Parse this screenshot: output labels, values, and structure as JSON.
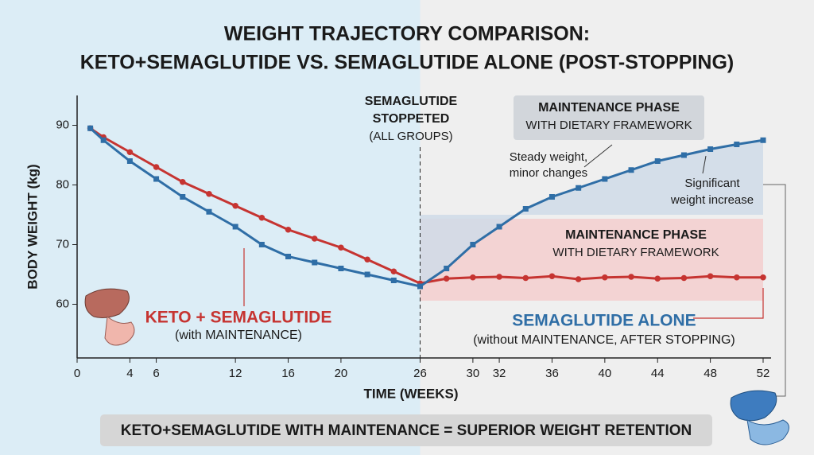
{
  "chart_data": {
    "type": "line",
    "title": [
      "WEIGHT TRAJECTORY COMPARISON:",
      "KETO+SEMAGLUTIDE VS. SEMAGLUTIDE ALONE (POST-STOPPING)"
    ],
    "y_label": "BODY WEIGHT (kg)",
    "x_label": "TIME (WEEKS)",
    "x": [
      1,
      2,
      4,
      6,
      8,
      10,
      12,
      14,
      16,
      18,
      20,
      22,
      24,
      26,
      28,
      30,
      32,
      34,
      36,
      38,
      40,
      42,
      44,
      46,
      48,
      50,
      52
    ],
    "series": [
      {
        "name": "KETO + SEMAGLUTIDE",
        "label": "(with MAINTENANCE)",
        "color": "#c63431",
        "marker": "circle",
        "values": [
          89.5,
          88,
          85.5,
          83,
          80.5,
          78.5,
          76.5,
          74.5,
          72.5,
          71,
          69.5,
          67.5,
          65.5,
          63.5,
          64.3,
          64.5,
          64.6,
          64.4,
          64.7,
          64.2,
          64.5,
          64.6,
          64.3,
          64.4,
          64.7,
          64.5,
          64.5
        ]
      },
      {
        "name": "SEMAGLUTIDE ALONE",
        "label": "(without MAINTENANCE, AFTER STOPPING)",
        "color": "#2f6ea6",
        "marker": "square",
        "values": [
          89.5,
          87.5,
          84,
          81,
          78,
          75.5,
          73,
          70,
          68,
          67,
          66,
          65,
          64,
          63,
          66,
          70,
          73,
          76,
          78,
          79.5,
          81,
          82.5,
          84,
          85,
          86,
          86.8,
          87.5
        ]
      }
    ],
    "xlim": [
      0,
      52
    ],
    "xticks": [
      0,
      4,
      6,
      12,
      16,
      20,
      26,
      30,
      32,
      36,
      40,
      44,
      48,
      52
    ],
    "ylim": [
      51,
      95
    ],
    "yticks": [
      60,
      70,
      80,
      90
    ],
    "stop_annotation": [
      "SEMAGLUTIDE",
      "STOPPETED",
      "(ALL GROUPS)"
    ],
    "phase_annotation_top": [
      "MAINTENANCE PHASE",
      "WITH DIETARY FRAMEWORK"
    ],
    "phase_annotation_mid": [
      "MAINTENANCE PHASE",
      "WITH DIETARY FRAMEWORK"
    ],
    "note_steady": [
      "Steady weight,",
      "minor changes"
    ],
    "note_increase": [
      "Significant",
      "weight increase"
    ],
    "footer": "KETO+SEMAGLUTIDE WITH MAINTENANCE = SUPERIOR WEIGHT RETENTION"
  }
}
